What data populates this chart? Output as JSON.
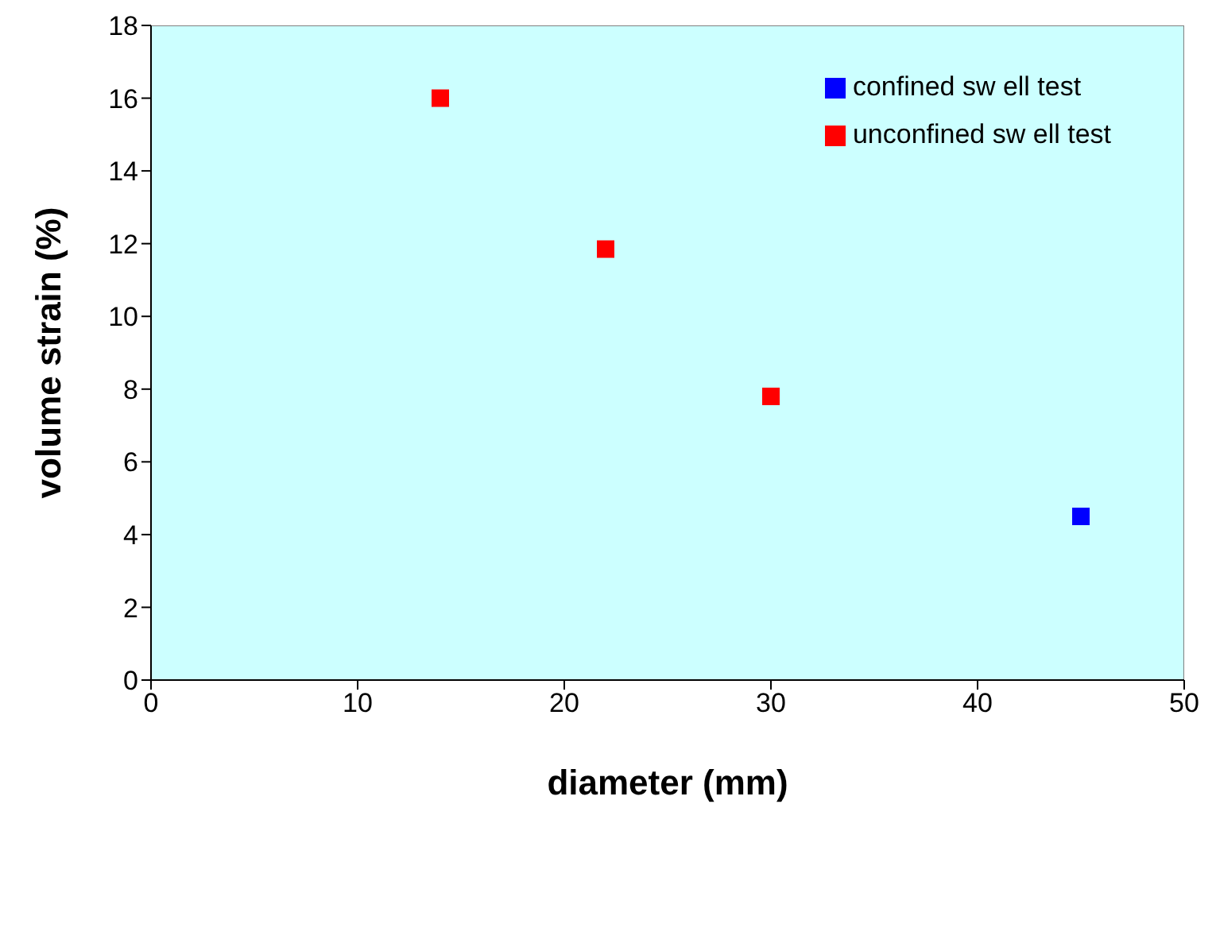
{
  "chart_data": {
    "type": "scatter",
    "xlabel": "diameter (mm)",
    "ylabel": "volume strain (%)",
    "xlim": [
      0,
      50
    ],
    "xticks": [
      0,
      10,
      20,
      30,
      40,
      50
    ],
    "ylim": [
      0,
      18
    ],
    "yticks": [
      0,
      2,
      4,
      6,
      8,
      10,
      12,
      14,
      16,
      18
    ],
    "grid": false,
    "legend": "top right",
    "marker": "square",
    "series": [
      {
        "name": "confined sw ell test",
        "color": "#0000ff",
        "x": [
          45
        ],
        "values": [
          4.5
        ]
      },
      {
        "name": "unconfined sw ell test",
        "color": "#ff0000",
        "x": [
          14,
          22,
          30
        ],
        "values": [
          16.0,
          11.85,
          7.8
        ]
      }
    ]
  }
}
